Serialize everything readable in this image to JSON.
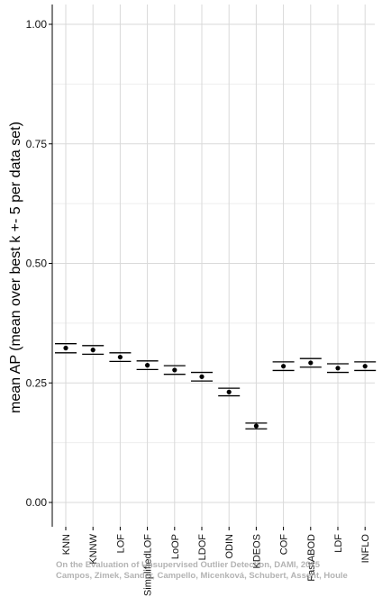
{
  "chart_data": {
    "type": "scatter",
    "ylabel": "mean AP (mean over best k +- 5 per data set)",
    "ylim": [
      0,
      1
    ],
    "y_ticks": [
      "0.00",
      "0.25",
      "0.50",
      "0.75",
      "1.00"
    ],
    "grid": true,
    "categories": [
      "KNN",
      "KNNW",
      "LOF",
      "SimplifiedLOF",
      "LoOP",
      "LDOF",
      "ODIN",
      "KDEOS",
      "COF",
      "FastABOD",
      "LDF",
      "INFLO"
    ],
    "series": [
      {
        "values": [
          0.323,
          0.319,
          0.304,
          0.287,
          0.277,
          0.263,
          0.231,
          0.16,
          0.285,
          0.292,
          0.281,
          0.285
        ],
        "upper": [
          0.332,
          0.328,
          0.313,
          0.296,
          0.286,
          0.272,
          0.239,
          0.166,
          0.294,
          0.301,
          0.29,
          0.294
        ],
        "lower": [
          0.313,
          0.31,
          0.295,
          0.278,
          0.268,
          0.254,
          0.223,
          0.154,
          0.276,
          0.283,
          0.272,
          0.276
        ]
      }
    ],
    "colors": {
      "grid": "#d9d9d9",
      "grid_minor": "#eeeeee",
      "axis": "#000000",
      "marks": "#000000"
    }
  },
  "watermark": {
    "line1": "On the Evaluation of Unsupervised Outlier Detection, DAMI, 2015",
    "line2": "Campos, Zimek, Sander, Campello, Micenková, Schubert, Assent, Houle"
  }
}
